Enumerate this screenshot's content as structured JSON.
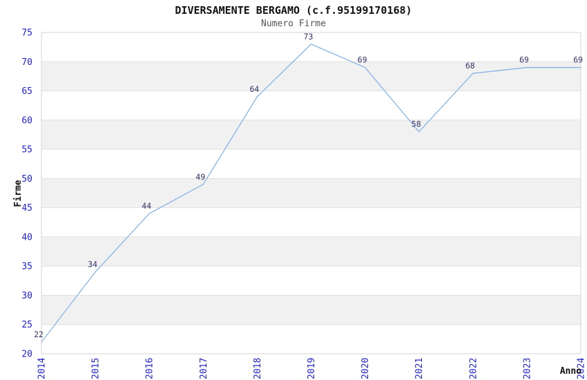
{
  "chart_data": {
    "type": "line",
    "title": "DIVERSAMENTE BERGAMO (c.f.95199170168)",
    "subtitle": "Numero Firme",
    "xlabel": "Anno",
    "ylabel": "Firme",
    "categories": [
      "2014",
      "2015",
      "2016",
      "2017",
      "2018",
      "2019",
      "2020",
      "2021",
      "2022",
      "2023",
      "2024"
    ],
    "series": [
      {
        "name": "Numero Firme",
        "values": [
          22,
          34,
          44,
          49,
          64,
          73,
          69,
          58,
          68,
          69,
          69
        ]
      }
    ],
    "ylim": [
      20,
      75
    ],
    "ytick_step": 5,
    "yticks": [
      20,
      25,
      30,
      35,
      40,
      45,
      50,
      55,
      60,
      65,
      70,
      75
    ],
    "grid": "horizontal gridlines with alternating shaded bands",
    "legend_position": "none",
    "data_labels_visible": true,
    "x_tick_rotation_degrees": -90,
    "colors": {
      "line": "#87b3e6",
      "tick_label": "#2222cc",
      "value_label": "#333366",
      "band_gray": "#f1f1f1",
      "band_white": "#ffffff",
      "grid": "#e0e0e0",
      "border": "#d4d4d4",
      "title": "#111111",
      "subtitle": "#555555",
      "axis_title": "#111111"
    }
  }
}
